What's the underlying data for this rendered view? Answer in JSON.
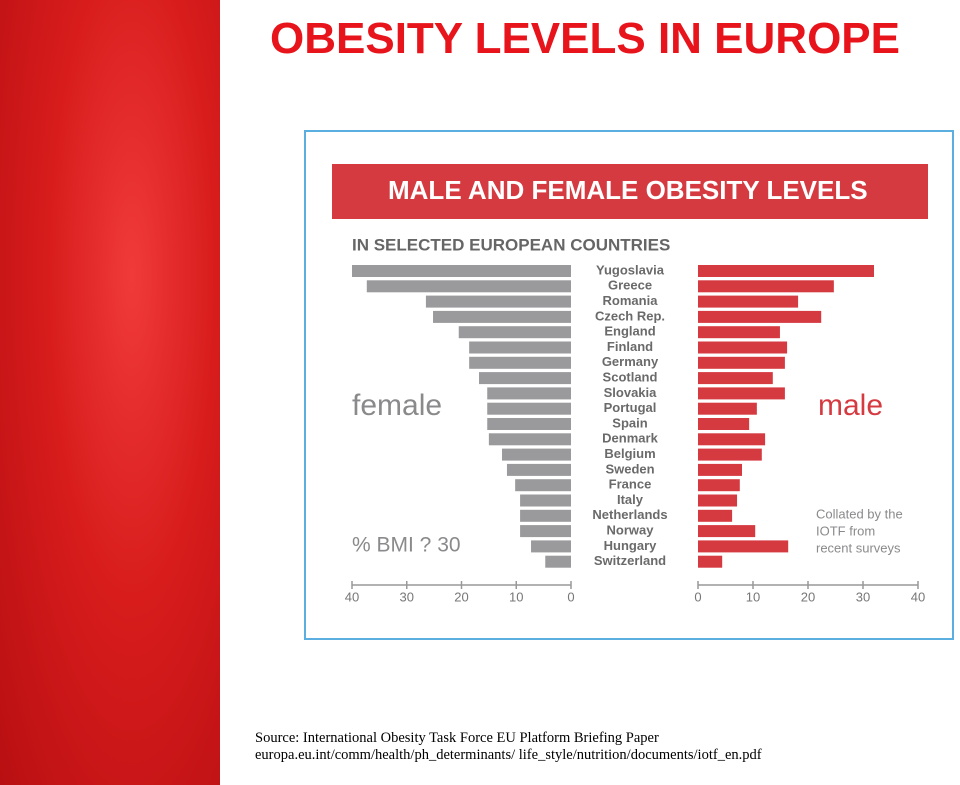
{
  "title": "OBESITY LEVELS IN EUROPE",
  "source": [
    "Source: International Obesity Task Force EU Platform Briefing Paper",
    "europa.eu.int/comm/health/ph_determinants/ life_style/nutrition/documents/iotf_en.pdf"
  ],
  "chart_data": {
    "type": "butterfly-bar",
    "title": "MALE AND FEMALE OBESITY LEVELS",
    "subtitle": "IN SELECTED EUROPEAN COUNTRIES",
    "axis_label": "% BMI ? 30",
    "annotation": [
      "Collated by the",
      "IOTF from",
      "recent surveys"
    ],
    "categories": [
      "Yugoslavia",
      "Greece",
      "Romania",
      "Czech Rep.",
      "England",
      "Finland",
      "Germany",
      "Scotland",
      "Slovakia",
      "Portugal",
      "Spain",
      "Denmark",
      "Belgium",
      "Sweden",
      "France",
      "Italy",
      "Netherlands",
      "Norway",
      "Hungary",
      "Switzerland"
    ],
    "series": [
      {
        "name": "female",
        "color": "#9a9a9c",
        "values": [
          40,
          37.3,
          26.5,
          25.2,
          20.5,
          18.6,
          18.6,
          16.8,
          15.3,
          15.3,
          15.3,
          15,
          12.6,
          11.7,
          10.2,
          9.3,
          9.3,
          9.3,
          7.3,
          4.7
        ]
      },
      {
        "name": "male",
        "color": "#d63a41",
        "values": [
          32,
          24.7,
          18.2,
          22.4,
          14.9,
          16.2,
          15.8,
          13.6,
          15.8,
          10.7,
          9.3,
          12.2,
          11.6,
          8,
          7.6,
          7.1,
          6.2,
          10.4,
          16.4,
          4.4
        ]
      }
    ],
    "xlim": [
      0,
      40
    ],
    "xticks": [
      0,
      10,
      20,
      30,
      40
    ]
  }
}
